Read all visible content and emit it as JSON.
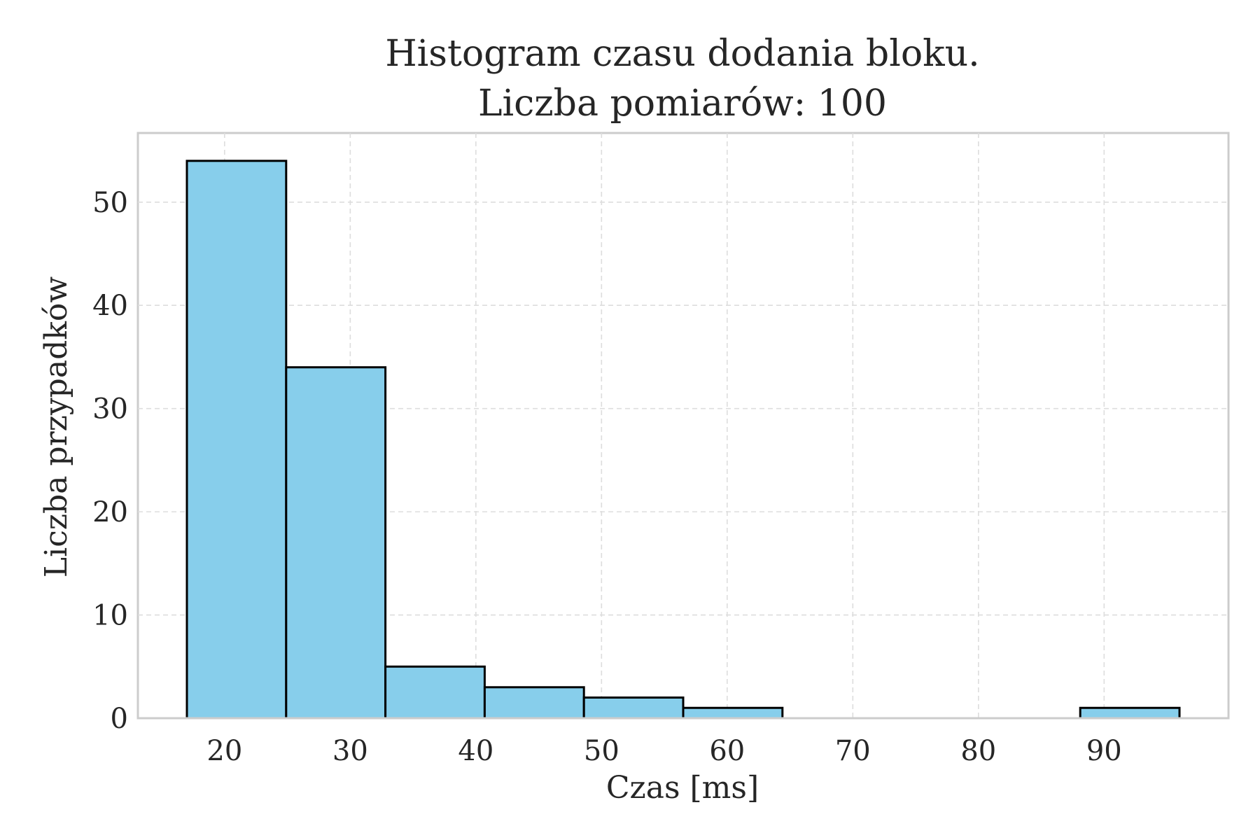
{
  "chart_data": {
    "type": "bar",
    "title": [
      "Histogram czasu dodania bloku.",
      "Liczba pomiarów: 100"
    ],
    "xlabel": "Czas [ms]",
    "ylabel": "Liczba przypadków",
    "xlim": [
      13.1,
      99.9
    ],
    "ylim": [
      0,
      56.7
    ],
    "xticks": [
      20,
      30,
      40,
      50,
      60,
      70,
      80,
      90
    ],
    "yticks": [
      0,
      10,
      20,
      30,
      40,
      50
    ],
    "bins": [
      {
        "start": 17.0,
        "end": 24.9,
        "value": 54
      },
      {
        "start": 24.9,
        "end": 32.8,
        "value": 34
      },
      {
        "start": 32.8,
        "end": 40.7,
        "value": 5
      },
      {
        "start": 40.7,
        "end": 48.6,
        "value": 3
      },
      {
        "start": 48.6,
        "end": 56.5,
        "value": 2
      },
      {
        "start": 56.5,
        "end": 64.4,
        "value": 1
      },
      {
        "start": 64.4,
        "end": 72.3,
        "value": 0
      },
      {
        "start": 72.3,
        "end": 80.2,
        "value": 0
      },
      {
        "start": 80.2,
        "end": 88.1,
        "value": 0
      },
      {
        "start": 88.1,
        "end": 96.0,
        "value": 1
      }
    ],
    "grid": true,
    "bar_color": "#87ceeb",
    "edge_color": "#000000",
    "grid_color": "#dddddd"
  }
}
